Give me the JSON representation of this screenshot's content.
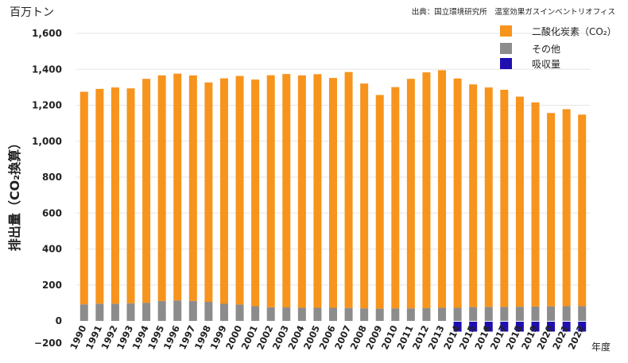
{
  "unit_label": "百万トン",
  "source": "出典：国立環境研究所　温室効果ガスインベントリオフィス",
  "ylabel": "排出量（CO₂換算）",
  "xlabel": "年度",
  "legend": [
    {
      "label": "二酸化炭素（CO₂）",
      "color": "#f7941d"
    },
    {
      "label": "その他",
      "color": "#8c8c8c"
    },
    {
      "label": "吸収量",
      "color": "#1f0fb0"
    }
  ],
  "chart_data": {
    "type": "bar",
    "stacked": true,
    "categories": [
      "1990",
      "1991",
      "1992",
      "1993",
      "1994",
      "1995",
      "1996",
      "1997",
      "1998",
      "1999",
      "2000",
      "2001",
      "2002",
      "2003",
      "2004",
      "2005",
      "2006",
      "2007",
      "2008",
      "2009",
      "2010",
      "2011",
      "2012",
      "2013",
      "2014",
      "2015",
      "2016",
      "2017",
      "2018",
      "2019",
      "2020",
      "2021",
      "2022"
    ],
    "series": [
      {
        "name": "その他",
        "color": "#8c8c8c",
        "values": [
          92,
          96,
          96,
          98,
          101,
          111,
          114,
          111,
          106,
          95,
          91,
          82,
          76,
          75,
          73,
          73,
          73,
          72,
          70,
          68,
          70,
          70,
          71,
          73,
          73,
          77,
          78,
          78,
          79,
          80,
          81,
          82,
          82
        ]
      },
      {
        "name": "二酸化炭素（CO₂）",
        "color": "#f7941d",
        "values": [
          1183,
          1195,
          1203,
          1196,
          1246,
          1255,
          1262,
          1255,
          1221,
          1255,
          1272,
          1261,
          1291,
          1299,
          1293,
          1300,
          1279,
          1313,
          1251,
          1189,
          1231,
          1277,
          1312,
          1322,
          1276,
          1239,
          1221,
          1208,
          1169,
          1136,
          1076,
          1096,
          1066
        ]
      },
      {
        "name": "吸収量",
        "color": "#1f0fb0",
        "values": [
          null,
          null,
          null,
          null,
          null,
          null,
          null,
          null,
          null,
          null,
          null,
          null,
          null,
          null,
          null,
          null,
          null,
          null,
          null,
          null,
          null,
          null,
          null,
          null,
          -55,
          -55,
          -55,
          -55,
          -55,
          -55,
          -55,
          -55,
          -55
        ]
      }
    ],
    "yticks": [
      -200,
      0,
      200,
      400,
      600,
      800,
      1000,
      1200,
      1400,
      1600
    ],
    "ytick_labels": [
      "−200",
      "0",
      "200",
      "400",
      "600",
      "800",
      "1,000",
      "1,200",
      "1,400",
      "1,600"
    ],
    "ylim": [
      -200,
      1600
    ],
    "grid": true,
    "legend_position": "top-right"
  }
}
